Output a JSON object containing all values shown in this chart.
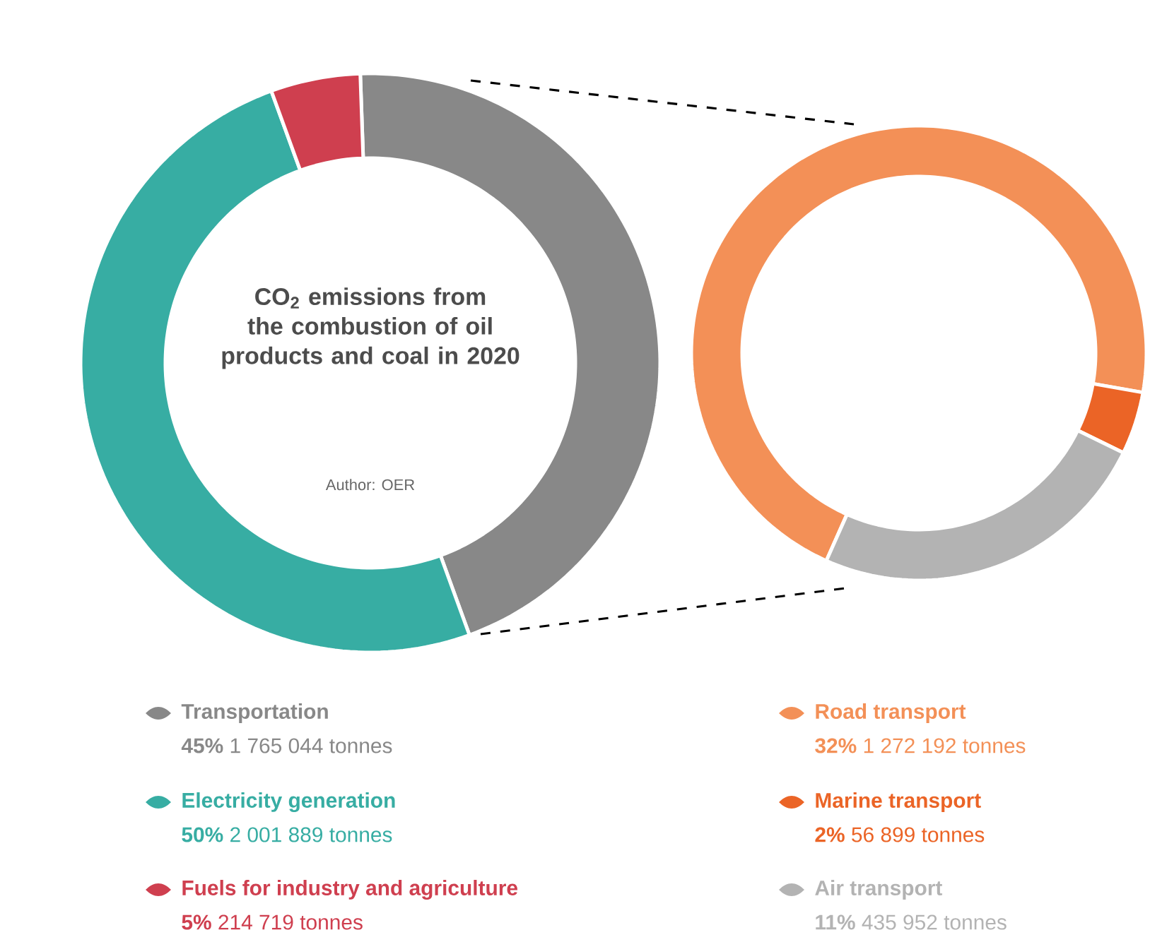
{
  "chart_data": [
    {
      "type": "donut",
      "title": "CO$_{2}$ emissions from the combustion of oil products and coal in 2020",
      "annotations": [
        "Author: OER"
      ],
      "legend": "bottom",
      "categories": [
        "Transportation",
        "Electricity generation",
        "Fuels for industry and agriculture"
      ],
      "values": [
        45,
        50,
        5
      ],
      "colors": [
        "#888888",
        "#37ada3",
        "#cf3f4f"
      ],
      "value_labels": [
        "**45%** 1 765 044 tonnes",
        "**50%** 2 001 889 tonnes",
        "**5%** 214 719 tonnes"
      ]
    },
    {
      "type": "donut",
      "legend": "bottom",
      "categories": [
        "Road transport",
        "Marine transport",
        "Air transport"
      ],
      "values": [
        32,
        2,
        11
      ],
      "colors": [
        "#f39057",
        "#eb6426",
        "#b3b3b3"
      ],
      "value_labels": [
        "**32%** 1 272 192 tonnes",
        "**2%** 56 899 tonnes",
        "**11%** 435 952 tonnes"
      ]
    }
  ]
}
